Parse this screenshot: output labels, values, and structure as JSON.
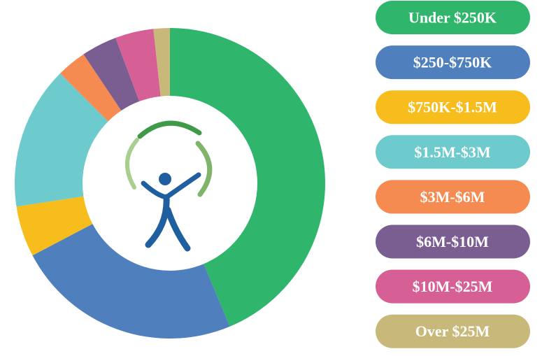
{
  "chart_data": {
    "type": "pie",
    "donut": true,
    "categories": [
      "Under $250K",
      "$250-$750K",
      "$750K-$1.5M",
      "$1.5M-$3M",
      "$3M-$6M",
      "$6M-$10M",
      "$10M-$25M",
      "Over $25M"
    ],
    "values": [
      43.7,
      23.6,
      5.3,
      14.9,
      3.1,
      3.7,
      4.0,
      1.7
    ],
    "colors": [
      "#2fb66c",
      "#4f7fbc",
      "#f6bd1d",
      "#6dcacd",
      "#f68b51",
      "#7b5e91",
      "#d65f95",
      "#c8b97b"
    ]
  }
}
